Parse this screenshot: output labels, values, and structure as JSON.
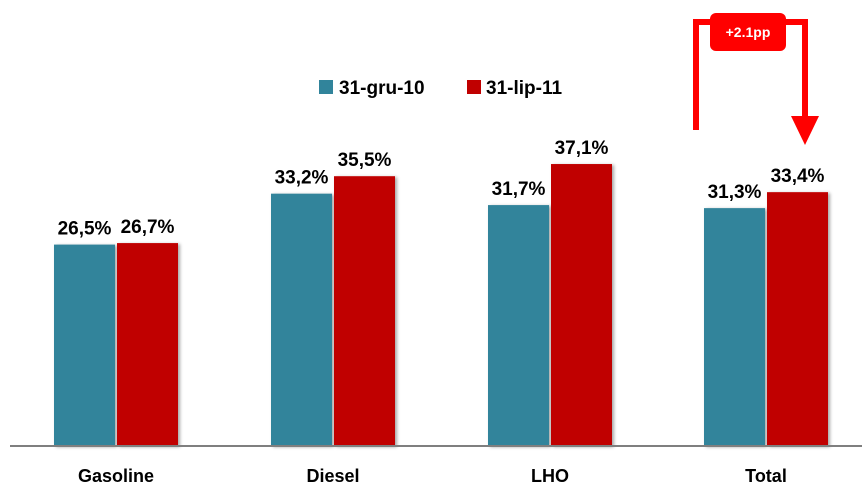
{
  "chart_data": {
    "type": "bar",
    "categories": [
      "Gasoline",
      "Diesel",
      "LHO",
      "Total"
    ],
    "series": [
      {
        "name": "31-gru-10",
        "color": "#31849B",
        "values": [
          26.5,
          33.2,
          31.7,
          31.3
        ],
        "labels": [
          "26,5%",
          "33,2%",
          "31,7%",
          "31,3%"
        ]
      },
      {
        "name": "31-lip-11",
        "color": "#C00000",
        "values": [
          26.7,
          35.5,
          37.1,
          33.4
        ],
        "labels": [
          "26,7%",
          "35,5%",
          "37,1%",
          "33,4%"
        ]
      }
    ],
    "annotation": {
      "text": "+2.1pp",
      "category": "Total",
      "color": "#FF0000"
    },
    "legend": "top",
    "grid": false,
    "title": "",
    "xlabel": "",
    "ylabel": ""
  }
}
